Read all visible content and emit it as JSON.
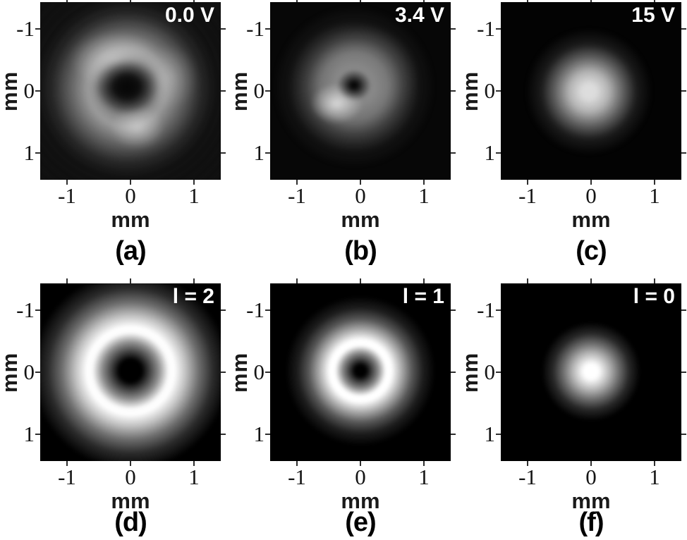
{
  "figure": {
    "background": "#ffffff",
    "tick_color": "#2f2f2f",
    "label_color": "#1a1a1a",
    "annotation_color": "#ffffff"
  },
  "panels": [
    {
      "letter": "(a)",
      "corner_label": "0.0 V",
      "xlabel": "mm",
      "ylabel": "mm",
      "x_ticks": [
        "-1",
        "0",
        "1"
      ],
      "y_ticks": [
        "-1",
        "0",
        "1"
      ]
    },
    {
      "letter": "(b)",
      "corner_label": "3.4 V",
      "xlabel": "mm",
      "ylabel": "mm",
      "x_ticks": [
        "-1",
        "0",
        "1"
      ],
      "y_ticks": [
        "-1",
        "0",
        "1"
      ]
    },
    {
      "letter": "(c)",
      "corner_label": "15 V",
      "xlabel": "mm",
      "ylabel": "mm",
      "x_ticks": [
        "-1",
        "0",
        "1"
      ],
      "y_ticks": [
        "-1",
        "0",
        "1"
      ]
    },
    {
      "letter": "(d)",
      "corner_label": "l = 2",
      "xlabel": "mm",
      "ylabel": "mm",
      "x_ticks": [
        "-1",
        "0",
        "1"
      ],
      "y_ticks": [
        "-1",
        "0",
        "1"
      ]
    },
    {
      "letter": "(e)",
      "corner_label": "l = 1",
      "xlabel": "mm",
      "ylabel": "mm",
      "x_ticks": [
        "-1",
        "0",
        "1"
      ],
      "y_ticks": [
        "-1",
        "0",
        "1"
      ]
    },
    {
      "letter": "(f)",
      "corner_label": "l = 0",
      "xlabel": "mm",
      "ylabel": "mm",
      "x_ticks": [
        "-1",
        "0",
        "1"
      ],
      "y_ticks": [
        "-1",
        "0",
        "1"
      ]
    }
  ],
  "chart_data": [
    {
      "panel": "(a)",
      "type": "heatmap",
      "annotation": "0.0 V",
      "xlabel": "mm",
      "ylabel": "mm",
      "x_ticks": [
        -1,
        0,
        1
      ],
      "y_ticks": [
        -1,
        0,
        1
      ],
      "xlim": [
        -1.45,
        1.45
      ],
      "ylim": [
        -1.45,
        1.45
      ],
      "colormap": "gray",
      "content": "measured beam: irregular bright annulus with speckle, peak radius ~0.5 mm, dark vortex core near (0,0), brighter lobes upper-left and lower-center"
    },
    {
      "panel": "(b)",
      "type": "heatmap",
      "annotation": "3.4 V",
      "xlabel": "mm",
      "ylabel": "mm",
      "x_ticks": [
        -1,
        0,
        1
      ],
      "y_ticks": [
        -1,
        0,
        1
      ],
      "xlim": [
        -1.45,
        1.45
      ],
      "ylim": [
        -1.45,
        1.45
      ],
      "colormap": "gray",
      "content": "measured beam: smaller donut, ring radius ~0.35 mm, brightest lobe lower-left of the dark core near (0,0)"
    },
    {
      "panel": "(c)",
      "type": "heatmap",
      "annotation": "15 V",
      "xlabel": "mm",
      "ylabel": "mm",
      "x_ticks": [
        -1,
        0,
        1
      ],
      "y_ticks": [
        -1,
        0,
        1
      ],
      "xlim": [
        -1.45,
        1.45
      ],
      "ylim": [
        -1.45,
        1.45
      ],
      "colormap": "gray",
      "content": "measured beam: Gaussian-like spot of radius ~0.4 mm centered slightly left of (0,0), no dark core"
    },
    {
      "panel": "(d)",
      "type": "heatmap",
      "annotation": "l = 2",
      "xlabel": "mm",
      "ylabel": "mm",
      "x_ticks": [
        -1,
        0,
        1
      ],
      "y_ticks": [
        -1,
        0,
        1
      ],
      "xlim": [
        -1.45,
        1.45
      ],
      "ylim": [
        -1.45,
        1.45
      ],
      "colormap": "gray",
      "content": "theoretical Laguerre-Gauss l=2 mode: smooth bright ring, peak radius ~0.55 mm, dark central core at (0,0)"
    },
    {
      "panel": "(e)",
      "type": "heatmap",
      "annotation": "l = 1",
      "xlabel": "mm",
      "ylabel": "mm",
      "x_ticks": [
        -1,
        0,
        1
      ],
      "y_ticks": [
        -1,
        0,
        1
      ],
      "xlim": [
        -1.45,
        1.45
      ],
      "ylim": [
        -1.45,
        1.45
      ],
      "colormap": "gray",
      "content": "theoretical Laguerre-Gauss l=1 mode: smooth bright ring, peak radius ~0.38 mm, small dark core at (0,0)"
    },
    {
      "panel": "(f)",
      "type": "heatmap",
      "annotation": "l = 0",
      "xlabel": "mm",
      "ylabel": "mm",
      "x_ticks": [
        -1,
        0,
        1
      ],
      "y_ticks": [
        -1,
        0,
        1
      ],
      "xlim": [
        -1.45,
        1.45
      ],
      "ylim": [
        -1.45,
        1.45
      ],
      "colormap": "gray",
      "content": "theoretical l=0 Gaussian mode: bright central spot of radius ~0.3 mm at (0,0)"
    }
  ]
}
